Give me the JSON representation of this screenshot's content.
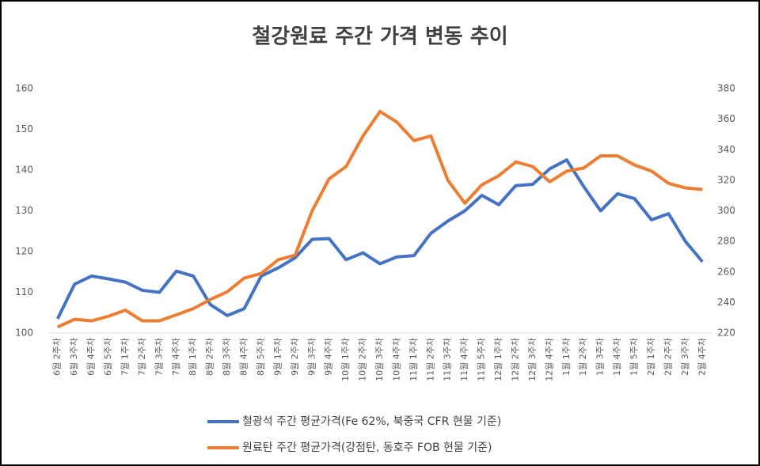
{
  "chart_data": {
    "type": "line",
    "title": "철강원료 주간 가격 변동 추이",
    "categories": [
      "6월 2주차",
      "6월 3주차",
      "6월 4주차",
      "6월 5주차",
      "7월 1주차",
      "7월 2주차",
      "7월 3주차",
      "7월 4주차",
      "8월 1주차",
      "8월 2주차",
      "8월 3주차",
      "8월 4주차",
      "8월 5주차",
      "9월 1주차",
      "9월 2주차",
      "9월 3주차",
      "9월 4주차",
      "10월 1주차",
      "10월 2주차",
      "10월 3주차",
      "10월 4주차",
      "11월 1주차",
      "11월 2주차",
      "11월 3주차",
      "11월 4주차",
      "11월 5주차",
      "12월 1주차",
      "12월 2주차",
      "12월 3주차",
      "12월 4주차",
      "1월 1주차",
      "1월 2주차",
      "1월 3주차",
      "1월 4주차",
      "1월 5주차",
      "2월 1주차",
      "2월 2주차",
      "2월 3주차",
      "2월 4주차"
    ],
    "series": [
      {
        "name": "철광석 주간 평균가격(Fe 62%, 북중국 CFR 현물 기준)",
        "color": "#4472c4",
        "values": [
          103.5,
          112,
          114,
          113.3,
          112.5,
          110.5,
          110,
          115.2,
          114,
          107,
          104.3,
          106,
          114,
          116,
          118.5,
          123,
          123.2,
          118,
          119.7,
          117,
          118.7,
          119,
          124.5,
          127.5,
          130,
          133.8,
          131.5,
          136.2,
          136.5,
          140.3,
          142.5,
          136,
          130,
          134.2,
          133,
          127.8,
          129.3,
          122.5,
          117.5
        ]
      },
      {
        "name": "원료탄 주간 평균가격(강점탄, 동호주 FOB 현물 기준)",
        "color": "#ed7d31",
        "axis": "y2",
        "values": [
          224,
          229,
          228,
          231,
          235,
          228,
          228,
          232,
          236,
          242,
          247,
          256,
          259,
          268,
          271,
          300,
          321,
          329,
          349,
          365,
          358,
          346,
          349,
          320,
          305,
          317,
          323,
          332,
          329,
          319,
          326,
          328,
          336,
          336,
          330,
          326,
          318,
          315,
          314
        ]
      }
    ],
    "ylim": [
      100,
      160
    ],
    "yticks": [
      100,
      110,
      120,
      130,
      140,
      150,
      160
    ],
    "y2lim": [
      220,
      380
    ],
    "y2ticks": [
      220,
      240,
      260,
      280,
      300,
      320,
      340,
      360,
      380
    ]
  }
}
